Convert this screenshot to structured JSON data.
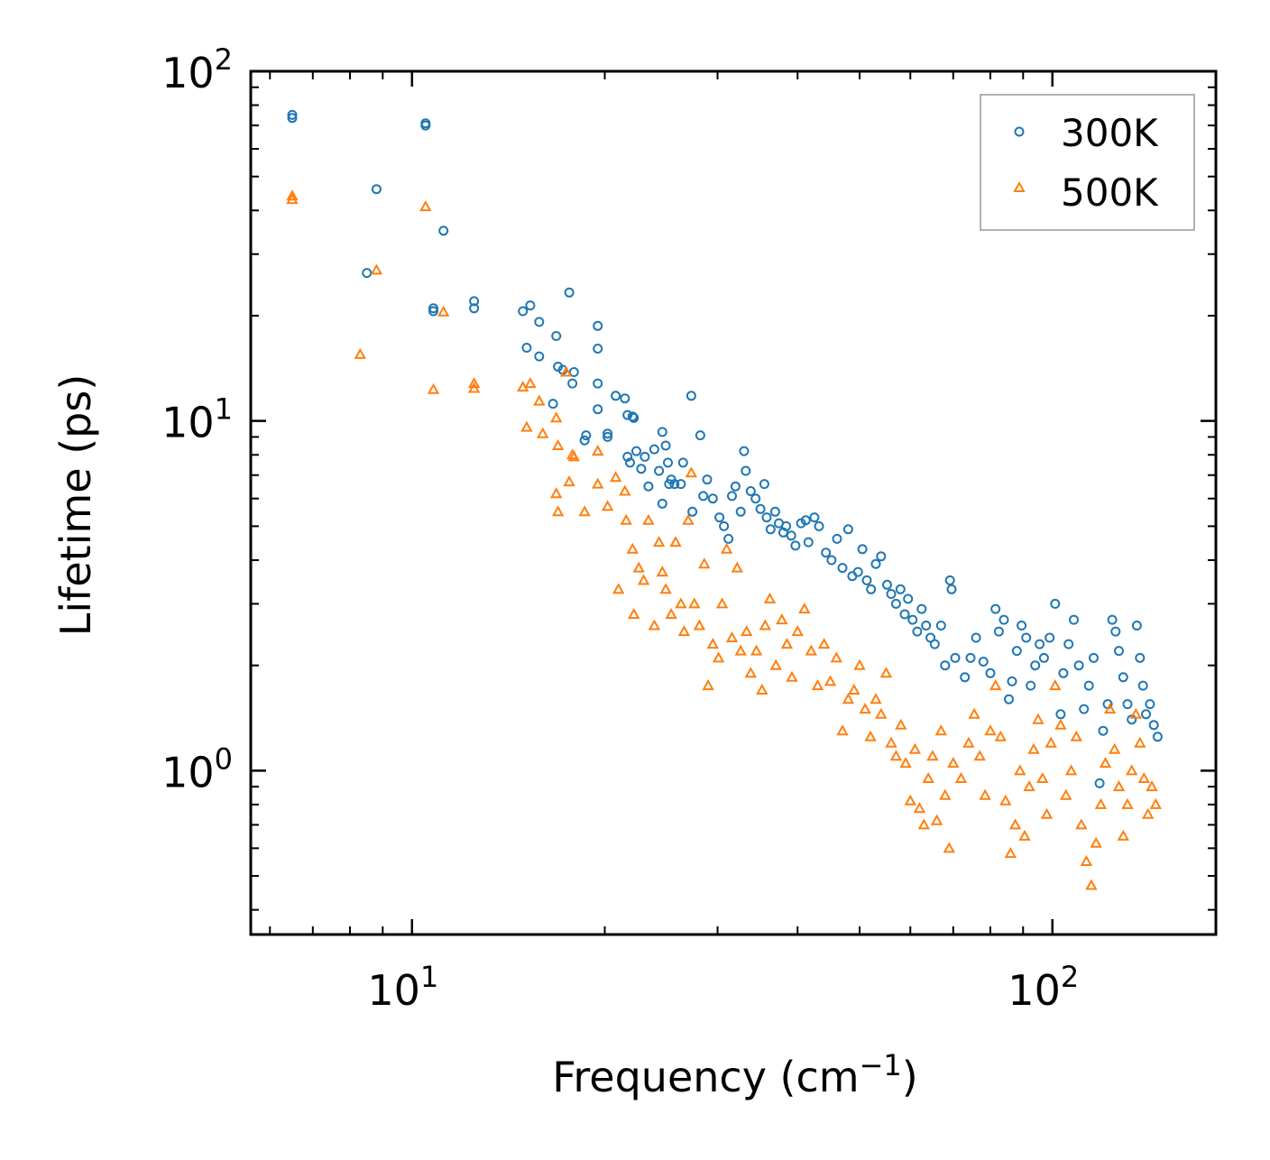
{
  "chart_data": {
    "type": "scatter",
    "title": "",
    "xlabel": "Frequency (cm",
    "xlabel_sup": "−1",
    "xlabel_suffix": ")",
    "ylabel": "Lifetime (ps)",
    "xscale": "log",
    "yscale": "log",
    "xlim": [
      5.6,
      180
    ],
    "ylim": [
      0.34,
      100
    ],
    "grid": false,
    "legend_position": "top-right",
    "x_ticks": [
      {
        "base": "10",
        "exp": "1"
      },
      {
        "base": "10",
        "exp": "2"
      }
    ],
    "y_ticks": [
      {
        "base": "10",
        "exp": "0"
      },
      {
        "base": "10",
        "exp": "1"
      },
      {
        "base": "10",
        "exp": "2"
      }
    ],
    "series": [
      {
        "name": "300K",
        "marker": "circle-open",
        "color": "#1f77b4",
        "points": [
          [
            6.5,
            75
          ],
          [
            6.5,
            73.5
          ],
          [
            8.8,
            46
          ],
          [
            8.5,
            26.5
          ],
          [
            10.5,
            71
          ],
          [
            10.5,
            70
          ],
          [
            10.8,
            21
          ],
          [
            10.8,
            20.6
          ],
          [
            11.2,
            35
          ],
          [
            12.5,
            22
          ],
          [
            12.5,
            21
          ],
          [
            14.9,
            20.6
          ],
          [
            15.3,
            21.4
          ],
          [
            15.8,
            19.2
          ],
          [
            15.1,
            16.2
          ],
          [
            16.8,
            17.5
          ],
          [
            16.6,
            11.2
          ],
          [
            15.8,
            15.3
          ],
          [
            16.9,
            14.3
          ],
          [
            17.2,
            14
          ],
          [
            17.6,
            23.3
          ],
          [
            17.9,
            13.8
          ],
          [
            17.8,
            12.8
          ],
          [
            18.6,
            8.8
          ],
          [
            18.7,
            9.1
          ],
          [
            19.5,
            18.7
          ],
          [
            19.5,
            16.1
          ],
          [
            19.5,
            12.8
          ],
          [
            19.5,
            10.8
          ],
          [
            20.2,
            9.2
          ],
          [
            20.2,
            9.0
          ],
          [
            20.8,
            11.8
          ],
          [
            21.5,
            11.6
          ],
          [
            21.7,
            10.4
          ],
          [
            22.1,
            10.3
          ],
          [
            22.2,
            10.2
          ],
          [
            21.7,
            7.9
          ],
          [
            21.9,
            7.6
          ],
          [
            22.4,
            8.2
          ],
          [
            22.8,
            7.3
          ],
          [
            23.1,
            7.9
          ],
          [
            23.4,
            6.5
          ],
          [
            23.9,
            8.3
          ],
          [
            24.3,
            7.2
          ],
          [
            24.6,
            9.3
          ],
          [
            24.9,
            8.5
          ],
          [
            25.1,
            7.6
          ],
          [
            25.4,
            6.8
          ],
          [
            24.6,
            5.8
          ],
          [
            25.2,
            6.6
          ],
          [
            25.7,
            6.6
          ],
          [
            26.3,
            6.6
          ],
          [
            26.5,
            7.6
          ],
          [
            27.3,
            11.8
          ],
          [
            27.4,
            5.5
          ],
          [
            28.2,
            9.1
          ],
          [
            28.5,
            6.1
          ],
          [
            28.9,
            6.8
          ],
          [
            29.5,
            6.0
          ],
          [
            30.2,
            5.3
          ],
          [
            30.7,
            5.0
          ],
          [
            31.2,
            4.6
          ],
          [
            31.6,
            6.1
          ],
          [
            32.0,
            6.5
          ],
          [
            32.6,
            5.5
          ],
          [
            33.0,
            8.2
          ],
          [
            33.2,
            7.2
          ],
          [
            33.8,
            6.3
          ],
          [
            34.4,
            6.0
          ],
          [
            35.0,
            5.6
          ],
          [
            35.5,
            6.6
          ],
          [
            35.8,
            5.3
          ],
          [
            36.3,
            4.9
          ],
          [
            36.9,
            5.5
          ],
          [
            37.4,
            5.1
          ],
          [
            38.0,
            4.8
          ],
          [
            38.4,
            5.0
          ],
          [
            39.1,
            4.7
          ],
          [
            39.7,
            4.4
          ],
          [
            40.5,
            5.1
          ],
          [
            41.2,
            5.2
          ],
          [
            41.6,
            4.5
          ],
          [
            42.5,
            5.3
          ],
          [
            43.2,
            5.0
          ],
          [
            44.3,
            4.2
          ],
          [
            45.2,
            4.0
          ],
          [
            46.1,
            4.6
          ],
          [
            47.0,
            3.8
          ],
          [
            48.0,
            4.9
          ],
          [
            48.7,
            3.6
          ],
          [
            49.7,
            3.7
          ],
          [
            50.5,
            4.3
          ],
          [
            51.3,
            3.5
          ],
          [
            52.1,
            3.3
          ],
          [
            53.0,
            3.9
          ],
          [
            54.0,
            4.1
          ],
          [
            55.2,
            3.4
          ],
          [
            56.0,
            3.2
          ],
          [
            57.0,
            3.0
          ],
          [
            57.9,
            3.3
          ],
          [
            58.8,
            2.8
          ],
          [
            59.5,
            3.1
          ],
          [
            60.5,
            2.7
          ],
          [
            61.5,
            2.5
          ],
          [
            62.5,
            2.9
          ],
          [
            63.5,
            2.6
          ],
          [
            64.5,
            2.4
          ],
          [
            65.5,
            2.3
          ],
          [
            67.0,
            2.6
          ],
          [
            68.0,
            2.0
          ],
          [
            69.2,
            3.5
          ],
          [
            69.6,
            3.3
          ],
          [
            70.5,
            2.1
          ],
          [
            73.0,
            1.85
          ],
          [
            74.5,
            2.1
          ],
          [
            76.0,
            2.4
          ],
          [
            78.0,
            2.05
          ],
          [
            80.0,
            1.9
          ],
          [
            81.5,
            2.9
          ],
          [
            82.5,
            2.5
          ],
          [
            84.0,
            2.7
          ],
          [
            85.5,
            1.6
          ],
          [
            86.5,
            1.8
          ],
          [
            88.0,
            2.2
          ],
          [
            89.5,
            2.6
          ],
          [
            91.0,
            2.4
          ],
          [
            92.5,
            1.75
          ],
          [
            94.0,
            2.0
          ],
          [
            95.5,
            2.3
          ],
          [
            97.0,
            2.1
          ],
          [
            99.0,
            2.4
          ],
          [
            101.0,
            3.0
          ],
          [
            103.0,
            1.45
          ],
          [
            104.0,
            1.9
          ],
          [
            106.0,
            2.3
          ],
          [
            108.0,
            2.7
          ],
          [
            110.0,
            2.0
          ],
          [
            112.0,
            1.5
          ],
          [
            114.0,
            1.75
          ],
          [
            116.0,
            2.1
          ],
          [
            118.5,
            0.92
          ],
          [
            120.0,
            1.3
          ],
          [
            122.0,
            1.55
          ],
          [
            124.0,
            2.7
          ],
          [
            125.5,
            2.5
          ],
          [
            127.0,
            2.2
          ],
          [
            129.0,
            1.85
          ],
          [
            131.0,
            1.55
          ],
          [
            133.0,
            1.4
          ],
          [
            135.5,
            2.6
          ],
          [
            137.0,
            2.1
          ],
          [
            138.5,
            1.75
          ],
          [
            140.0,
            1.45
          ],
          [
            142.0,
            1.55
          ],
          [
            144.0,
            1.35
          ],
          [
            146.0,
            1.25
          ]
        ]
      },
      {
        "name": "500K",
        "marker": "triangle-open",
        "color": "#ff7f0e",
        "points": [
          [
            6.5,
            44
          ],
          [
            6.5,
            43
          ],
          [
            8.8,
            27
          ],
          [
            8.3,
            15.5
          ],
          [
            10.5,
            41
          ],
          [
            10.8,
            12.3
          ],
          [
            11.2,
            20.5
          ],
          [
            12.5,
            12.8
          ],
          [
            12.5,
            12.4
          ],
          [
            14.9,
            12.5
          ],
          [
            15.3,
            12.8
          ],
          [
            15.8,
            11.4
          ],
          [
            15.1,
            9.6
          ],
          [
            16.0,
            9.2
          ],
          [
            16.8,
            10.2
          ],
          [
            16.9,
            8.5
          ],
          [
            17.4,
            13.8
          ],
          [
            17.8,
            8.0
          ],
          [
            17.9,
            7.9
          ],
          [
            17.6,
            6.7
          ],
          [
            16.8,
            6.2
          ],
          [
            16.9,
            5.5
          ],
          [
            18.6,
            5.5
          ],
          [
            19.5,
            8.2
          ],
          [
            19.5,
            6.6
          ],
          [
            20.2,
            5.7
          ],
          [
            20.8,
            6.9
          ],
          [
            21.0,
            3.3
          ],
          [
            21.5,
            6.3
          ],
          [
            21.6,
            5.2
          ],
          [
            22.1,
            4.3
          ],
          [
            22.2,
            2.8
          ],
          [
            22.6,
            3.8
          ],
          [
            23.0,
            3.5
          ],
          [
            23.4,
            5.2
          ],
          [
            23.9,
            2.6
          ],
          [
            24.3,
            4.5
          ],
          [
            24.6,
            3.7
          ],
          [
            24.9,
            3.3
          ],
          [
            25.4,
            2.8
          ],
          [
            25.8,
            4.5
          ],
          [
            26.3,
            3.0
          ],
          [
            26.6,
            2.5
          ],
          [
            27.0,
            5.2
          ],
          [
            27.3,
            7.1
          ],
          [
            27.6,
            3.0
          ],
          [
            28.1,
            2.6
          ],
          [
            28.6,
            3.9
          ],
          [
            29.0,
            1.75
          ],
          [
            29.5,
            2.3
          ],
          [
            30.1,
            2.1
          ],
          [
            30.5,
            3.0
          ],
          [
            31.0,
            4.3
          ],
          [
            31.6,
            2.4
          ],
          [
            32.2,
            3.8
          ],
          [
            32.6,
            2.2
          ],
          [
            33.3,
            2.5
          ],
          [
            33.8,
            1.9
          ],
          [
            34.5,
            2.2
          ],
          [
            35.2,
            1.7
          ],
          [
            35.6,
            2.6
          ],
          [
            36.2,
            3.1
          ],
          [
            37.0,
            2.0
          ],
          [
            37.8,
            2.7
          ],
          [
            38.5,
            2.3
          ],
          [
            39.2,
            1.85
          ],
          [
            40.0,
            2.5
          ],
          [
            41.0,
            2.9
          ],
          [
            42.0,
            2.2
          ],
          [
            43.0,
            1.75
          ],
          [
            44.0,
            2.3
          ],
          [
            45.0,
            1.8
          ],
          [
            46.0,
            2.1
          ],
          [
            47.0,
            1.3
          ],
          [
            48.0,
            1.6
          ],
          [
            49.0,
            1.7
          ],
          [
            50.0,
            2.0
          ],
          [
            51.0,
            1.5
          ],
          [
            52.0,
            1.25
          ],
          [
            53.0,
            1.6
          ],
          [
            54.0,
            1.45
          ],
          [
            55.0,
            1.9
          ],
          [
            56.0,
            1.2
          ],
          [
            57.0,
            1.1
          ],
          [
            58.0,
            1.35
          ],
          [
            59.0,
            1.05
          ],
          [
            60.0,
            0.82
          ],
          [
            61.0,
            1.15
          ],
          [
            62.0,
            0.78
          ],
          [
            63.0,
            0.7
          ],
          [
            64.0,
            0.95
          ],
          [
            65.0,
            1.1
          ],
          [
            66.0,
            0.72
          ],
          [
            67.0,
            1.3
          ],
          [
            68.0,
            0.85
          ],
          [
            69.0,
            0.6
          ],
          [
            70.0,
            1.05
          ],
          [
            72.0,
            0.95
          ],
          [
            74.0,
            1.2
          ],
          [
            75.5,
            1.45
          ],
          [
            77.0,
            1.1
          ],
          [
            78.5,
            0.85
          ],
          [
            80.0,
            1.3
          ],
          [
            81.5,
            1.75
          ],
          [
            83.0,
            1.25
          ],
          [
            84.5,
            0.82
          ],
          [
            86.0,
            0.58
          ],
          [
            87.5,
            0.7
          ],
          [
            89.0,
            1.0
          ],
          [
            90.5,
            0.65
          ],
          [
            92.0,
            0.9
          ],
          [
            93.5,
            1.15
          ],
          [
            95.0,
            1.4
          ],
          [
            96.5,
            0.95
          ],
          [
            98.0,
            0.75
          ],
          [
            99.5,
            1.2
          ],
          [
            101.0,
            1.75
          ],
          [
            103.0,
            1.35
          ],
          [
            105.0,
            0.85
          ],
          [
            107.0,
            1.0
          ],
          [
            109.0,
            1.25
          ],
          [
            111.0,
            0.7
          ],
          [
            113.0,
            0.55
          ],
          [
            115.0,
            0.47
          ],
          [
            117.0,
            0.62
          ],
          [
            119.0,
            0.8
          ],
          [
            121.0,
            1.05
          ],
          [
            123.0,
            1.5
          ],
          [
            125.0,
            1.15
          ],
          [
            127.0,
            0.9
          ],
          [
            129.0,
            0.65
          ],
          [
            131.0,
            0.8
          ],
          [
            133.0,
            1.0
          ],
          [
            135.0,
            1.45
          ],
          [
            137.0,
            1.2
          ],
          [
            139.0,
            0.95
          ],
          [
            141.0,
            0.75
          ],
          [
            143.0,
            0.9
          ],
          [
            145.0,
            0.8
          ]
        ]
      }
    ]
  }
}
